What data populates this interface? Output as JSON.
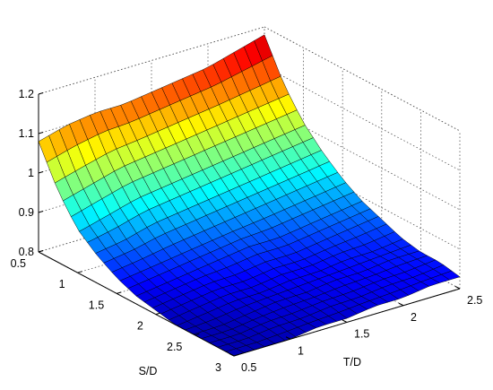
{
  "chart_data": {
    "type": "surface",
    "x_label": "S/D",
    "y_label": "T/D",
    "z_label": "",
    "title": "",
    "x_range": [
      0.5,
      3
    ],
    "y_range": [
      0.5,
      2.5
    ],
    "z_range": [
      0.8,
      1.2
    ],
    "x_ticks": [
      "0.5",
      "1",
      "1.5",
      "2",
      "2.5",
      "3"
    ],
    "y_ticks": [
      "0.5",
      "1",
      "1.5",
      "2",
      "2.5"
    ],
    "z_ticks": [
      "0.8",
      "0.9",
      "1",
      "1.1",
      "1.2"
    ],
    "grid": true,
    "colormap": "jet",
    "surface_x": [
      0.5,
      0.75,
      1.0,
      1.25,
      1.5,
      1.75,
      2.0,
      2.25,
      2.5,
      2.75,
      3.0
    ],
    "surface_y": [
      0.5,
      0.75,
      1.0,
      1.25,
      1.5,
      1.75,
      2.0,
      2.25,
      2.5
    ],
    "surface_z": [
      [
        1.08,
        1.1,
        1.11,
        1.11,
        1.12,
        1.13,
        1.14,
        1.16,
        1.18
      ],
      [
        0.98,
        1.0,
        1.02,
        1.03,
        1.04,
        1.05,
        1.06,
        1.07,
        1.08
      ],
      [
        0.91,
        0.93,
        0.95,
        0.96,
        0.97,
        0.98,
        0.99,
        1.0,
        1.01
      ],
      [
        0.87,
        0.88,
        0.9,
        0.91,
        0.92,
        0.93,
        0.94,
        0.95,
        0.96
      ],
      [
        0.84,
        0.85,
        0.86,
        0.87,
        0.88,
        0.89,
        0.9,
        0.91,
        0.92
      ],
      [
        0.82,
        0.83,
        0.84,
        0.85,
        0.86,
        0.86,
        0.87,
        0.88,
        0.89
      ],
      [
        0.81,
        0.82,
        0.83,
        0.83,
        0.84,
        0.84,
        0.85,
        0.86,
        0.87
      ],
      [
        0.8,
        0.81,
        0.82,
        0.82,
        0.83,
        0.83,
        0.84,
        0.84,
        0.85
      ],
      [
        0.8,
        0.8,
        0.81,
        0.82,
        0.82,
        0.83,
        0.83,
        0.84,
        0.84
      ],
      [
        0.8,
        0.8,
        0.81,
        0.81,
        0.82,
        0.82,
        0.83,
        0.83,
        0.84
      ],
      [
        0.8,
        0.8,
        0.8,
        0.81,
        0.81,
        0.82,
        0.82,
        0.83,
        0.83
      ]
    ]
  }
}
